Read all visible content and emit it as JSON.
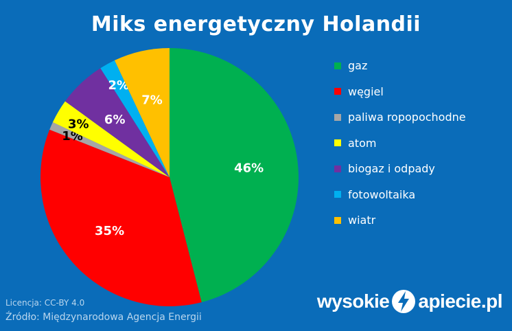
{
  "chart_data": {
    "type": "pie",
    "title": "Miks energetyczny Holandii",
    "categories": [
      "gaz",
      "węgiel",
      "paliwa ropopochodne",
      "atom",
      "biogaz i odpady",
      "fotowoltaika",
      "wiatr"
    ],
    "values": [
      46,
      35,
      1,
      3,
      6,
      2,
      7
    ],
    "labels": [
      "46%",
      "35%",
      "1%",
      "3%",
      "6%",
      "2%",
      "7%"
    ],
    "colors": [
      "#00b050",
      "#ff0000",
      "#a6a6a6",
      "#ffff00",
      "#7030a0",
      "#00b0f0",
      "#ffc000"
    ],
    "label_colors": [
      "#ffffff",
      "#ffffff",
      "#000000",
      "#000000",
      "#ffffff",
      "#ffffff",
      "#ffffff"
    ],
    "legend_position": "right"
  },
  "footer": {
    "license": "Licencja: CC-BY 4.0",
    "source": "Źródło: Międzynarodowa Agencja Energii"
  },
  "brand": {
    "left": "wysokie",
    "right": "apiecie.pl",
    "icon": "lightning-bolt-icon"
  }
}
